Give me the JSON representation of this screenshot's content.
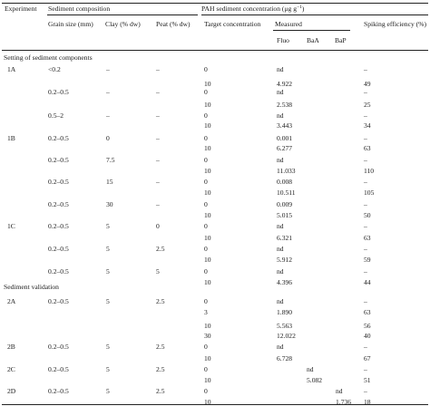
{
  "headers": {
    "experiment": "Experiment",
    "sediment_composition": "Sediment composition",
    "pah_concentration": "PAH sediment concentration (μg g",
    "pah_concentration_sup": "−1",
    "pah_concentration_close": ")",
    "grain_size": "Grain size (mm)",
    "clay": "Clay (% dw)",
    "peat": "Peat (% dw)",
    "target": "Target concentration",
    "measured": "Measured",
    "spiking": "Spiking efficiency (%)",
    "fluo": "Fluo",
    "baa": "BaA",
    "bap": "BaP"
  },
  "sections": [
    {
      "title": "Setting of sediment components",
      "rows": [
        [
          "1A",
          "<0.2",
          "–",
          "–",
          "0",
          "nd",
          "",
          "",
          "–"
        ],
        [
          "",
          "",
          "",
          "",
          "10",
          "4.922",
          "",
          "",
          "49"
        ],
        [
          "",
          "0.2–0.5",
          "–",
          "–",
          "0",
          "nd",
          "",
          "",
          "–"
        ],
        [
          "",
          "",
          "",
          "",
          "10",
          "2.538",
          "",
          "",
          "25"
        ],
        [
          "",
          "0.5–2",
          "–",
          "–",
          "0",
          "nd",
          "",
          "",
          "–"
        ],
        [
          "",
          "",
          "",
          "",
          "10",
          "3.443",
          "",
          "",
          "34"
        ],
        [
          "1B",
          "0.2–0.5",
          "0",
          "–",
          "0",
          "0.001",
          "",
          "",
          "–"
        ],
        [
          "",
          "",
          "",
          "",
          "10",
          "6.277",
          "",
          "",
          "63"
        ],
        [
          "",
          "0.2–0.5",
          "7.5",
          "–",
          "0",
          "nd",
          "",
          "",
          "–"
        ],
        [
          "",
          "",
          "",
          "",
          "10",
          "11.033",
          "",
          "",
          "110"
        ],
        [
          "",
          "0.2–0.5",
          "15",
          "–",
          "0",
          "0.008",
          "",
          "",
          "–"
        ],
        [
          "",
          "",
          "",
          "",
          "10",
          "10.511",
          "",
          "",
          "105"
        ],
        [
          "",
          "0.2–0.5",
          "30",
          "–",
          "0",
          "0.009",
          "",
          "",
          "–"
        ],
        [
          "",
          "",
          "",
          "",
          "10",
          "5.015",
          "",
          "",
          "50"
        ],
        [
          "1C",
          "0.2–0.5",
          "5",
          "0",
          "0",
          "nd",
          "",
          "",
          "–"
        ],
        [
          "",
          "",
          "",
          "",
          "10",
          "6.321",
          "",
          "",
          "63"
        ],
        [
          "",
          "0.2–0.5",
          "5",
          "2.5",
          "0",
          "nd",
          "",
          "",
          "–"
        ],
        [
          "",
          "",
          "",
          "",
          "10",
          "5.912",
          "",
          "",
          "59"
        ],
        [
          "",
          "0.2–0.5",
          "5",
          "5",
          "0",
          "nd",
          "",
          "",
          "–"
        ],
        [
          "",
          "",
          "",
          "",
          "10",
          "4.396",
          "",
          "",
          "44"
        ]
      ]
    },
    {
      "title": "Sediment validation",
      "rows": [
        [
          "2A",
          "0.2–0.5",
          "5",
          "2.5",
          "0",
          "nd",
          "",
          "",
          "–"
        ],
        [
          "",
          "",
          "",
          "",
          "3",
          "1.890",
          "",
          "",
          "63"
        ],
        [
          "",
          "",
          "",
          "",
          "10",
          "5.563",
          "",
          "",
          "56"
        ],
        [
          "",
          "",
          "",
          "",
          "30",
          "12.022",
          "",
          "",
          "40"
        ],
        [
          "2B",
          "0.2–0.5",
          "5",
          "2.5",
          "0",
          "nd",
          "",
          "",
          "–"
        ],
        [
          "",
          "",
          "",
          "",
          "10",
          "6.728",
          "",
          "",
          "67"
        ],
        [
          "2C",
          "0.2–0.5",
          "5",
          "2.5",
          "0",
          "",
          "nd",
          "",
          "–"
        ],
        [
          "",
          "",
          "",
          "",
          "10",
          "",
          "5.082",
          "",
          "51"
        ],
        [
          "2D",
          "0.2–0.5",
          "5",
          "2.5",
          "0",
          "",
          "",
          "nd",
          "–"
        ],
        [
          "",
          "",
          "",
          "",
          "10",
          "",
          "",
          "1.736",
          "18"
        ]
      ]
    }
  ]
}
